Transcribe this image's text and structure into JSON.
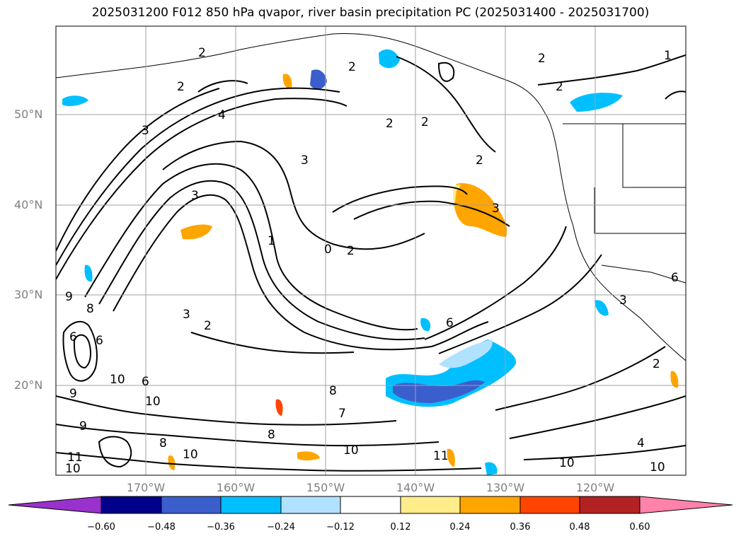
{
  "title": "2025031200 F012 850 hPa qvapor, river basin precipitation PC (2025031400 - 2025031700)",
  "latitude_labels": [
    "50°N",
    "40°N",
    "30°N",
    "20°N"
  ],
  "longitude_labels": [
    "170°W",
    "160°W",
    "150°W",
    "140°W",
    "130°W",
    "120°W"
  ],
  "colorbar": {
    "ticks": [
      "−0.60",
      "−0.48",
      "−0.36",
      "−0.24",
      "−0.12",
      "0.12",
      "0.24",
      "0.36",
      "0.48",
      "0.60"
    ],
    "colors": [
      "#9932cc",
      "#00008b",
      "#3a5fcd",
      "#00bfff",
      "#b0e2ff",
      "#ffffff",
      "#ffec8b",
      "#ffa500",
      "#ff4500",
      "#b22222",
      "#ff82ab"
    ]
  },
  "contour_labels": [
    "2",
    "1",
    "2",
    "2",
    "4",
    "3",
    "3",
    "3",
    "1",
    "2",
    "2",
    "2",
    "2",
    "2",
    "3",
    "0",
    "2",
    "6",
    "9",
    "8",
    "6",
    "6",
    "10",
    "10",
    "6",
    "9",
    "8",
    "8",
    "10",
    "11",
    "10",
    "9",
    "11",
    "10",
    "10",
    "8",
    "7",
    "2",
    "3",
    "3",
    "2",
    "10",
    "4",
    "6"
  ]
}
